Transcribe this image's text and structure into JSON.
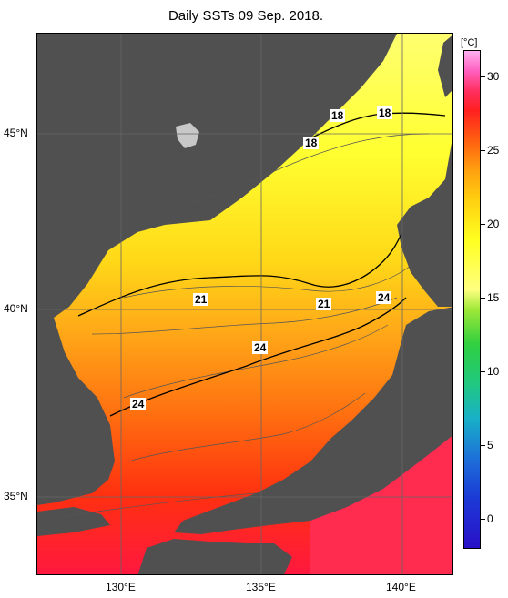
{
  "title": "Daily SSTs 09 Sep. 2018.",
  "map": {
    "region": "Sea of Japan",
    "land_color": "#505050",
    "latitude_labels": [
      "45°N",
      "40°N",
      "35°N"
    ],
    "longitude_labels": [
      "130°E",
      "135°E",
      "140°E"
    ],
    "contour_labels": [
      "18",
      "18",
      "18",
      "21",
      "21",
      "24",
      "24",
      "24"
    ]
  },
  "colorbar": {
    "unit": "[°C]",
    "ticks": [
      "30",
      "25",
      "20",
      "15",
      "10",
      "5",
      "0"
    ]
  }
}
